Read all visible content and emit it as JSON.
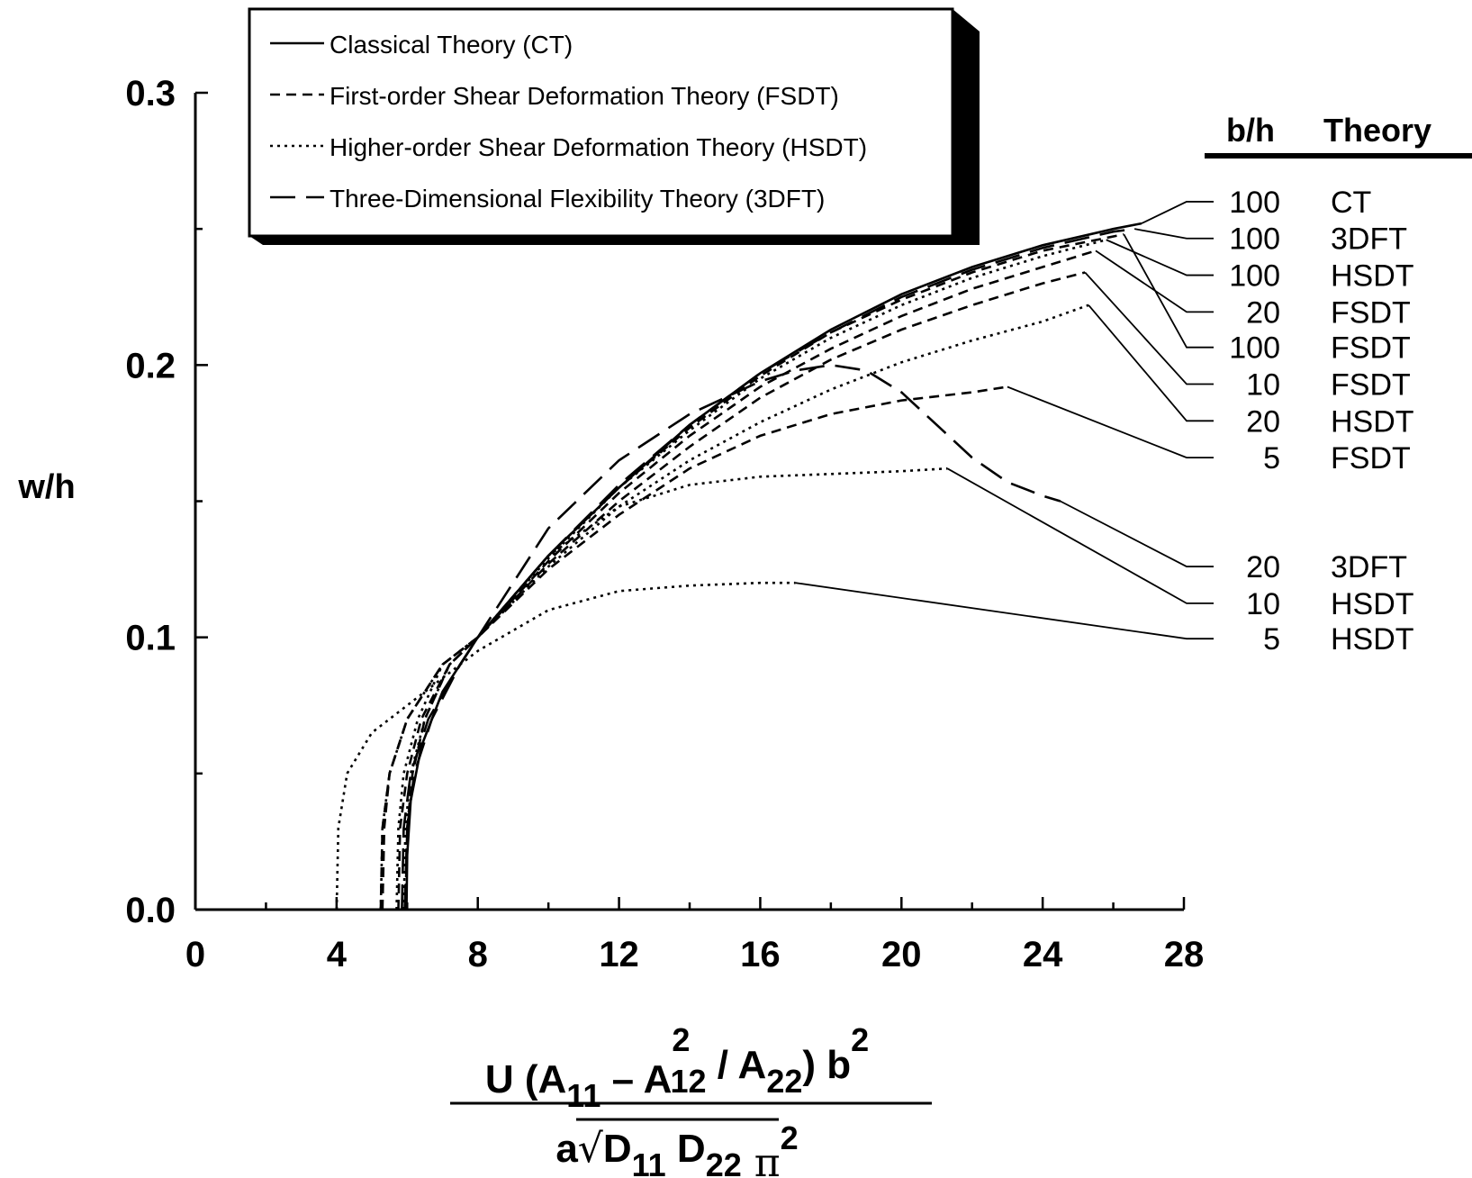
{
  "chart_data": {
    "type": "line",
    "xlabel": {
      "num_parts": [
        "U (A",
        "11",
        " – A",
        "2",
        "12",
        " / A",
        "22",
        ") b",
        "2"
      ],
      "den_parts": [
        "a",
        "D",
        "11",
        " D",
        "22",
        "π",
        "2"
      ]
    },
    "ylabel": "w/h",
    "xlim": [
      0,
      28
    ],
    "ylim": [
      0,
      0.3
    ],
    "x_ticks": [
      "0",
      "4",
      "8",
      "12",
      "16",
      "20",
      "24",
      "28"
    ],
    "y_ticks": [
      "0.0",
      "0.1",
      "0.2",
      "0.3"
    ],
    "legend": [
      {
        "label": "Classical Theory (CT)",
        "style": "solid"
      },
      {
        "label": "First-order Shear Deformation Theory (FSDT)",
        "style": "dashed"
      },
      {
        "label": "Higher-order Shear Deformation Theory (HSDT)",
        "style": "dotted"
      },
      {
        "label": "Three-Dimensional Flexibility Theory (3DFT)",
        "style": "longdash"
      }
    ],
    "legend_position": "top-left",
    "annotation_headers": {
      "bh": "b/h",
      "theory": "Theory"
    },
    "series": [
      {
        "bh": "100",
        "theory": "CT",
        "style": "solid",
        "x": [
          5.98,
          6.0,
          6.1,
          6.4,
          7.0,
          8.0,
          10.0,
          12.0,
          14.0,
          16.0,
          18.0,
          20.0,
          22.0,
          24.0,
          26.0,
          26.8
        ],
        "y": [
          0.0,
          0.02,
          0.04,
          0.06,
          0.08,
          0.1,
          0.13,
          0.155,
          0.178,
          0.197,
          0.213,
          0.226,
          0.236,
          0.244,
          0.25,
          0.252
        ],
        "label_end": [
          26.8,
          0.252
        ],
        "label_y": 0.26
      },
      {
        "bh": "100",
        "theory": "3DFT",
        "style": "longdash",
        "x": [
          5.93,
          6.0,
          6.2,
          6.7,
          7.5,
          8.0,
          10.0,
          12.0,
          14.0,
          16.0,
          18.0,
          20.0,
          22.0,
          24.0,
          26.0,
          26.6
        ],
        "y": [
          0.0,
          0.03,
          0.05,
          0.07,
          0.09,
          0.1,
          0.13,
          0.156,
          0.178,
          0.197,
          0.212,
          0.225,
          0.235,
          0.243,
          0.249,
          0.25
        ],
        "label_end": [
          26.6,
          0.25
        ],
        "label_y": 0.2465
      },
      {
        "bh": "100",
        "theory": "HSDT",
        "style": "dotted",
        "x": [
          5.9,
          5.95,
          6.1,
          6.5,
          7.2,
          8.0,
          10.0,
          12.0,
          14.0,
          16.0,
          18.0,
          20.0,
          22.0,
          24.0,
          25.8
        ],
        "y": [
          0.0,
          0.03,
          0.05,
          0.07,
          0.09,
          0.1,
          0.129,
          0.155,
          0.176,
          0.195,
          0.21,
          0.222,
          0.232,
          0.24,
          0.246
        ],
        "label_end": [
          25.8,
          0.246
        ],
        "label_y": 0.233
      },
      {
        "bh": "20",
        "theory": "FSDT",
        "style": "dashed",
        "x": [
          5.75,
          5.8,
          6.0,
          6.4,
          7.2,
          8.0,
          10.0,
          12.0,
          14.0,
          16.0,
          18.0,
          20.0,
          22.0,
          24.0,
          25.5
        ],
        "y": [
          0.0,
          0.03,
          0.05,
          0.07,
          0.09,
          0.1,
          0.128,
          0.153,
          0.174,
          0.192,
          0.206,
          0.218,
          0.228,
          0.236,
          0.242
        ],
        "label_end": [
          25.5,
          0.242
        ],
        "label_y": 0.2195
      },
      {
        "bh": "100",
        "theory": "FSDT",
        "style": "dashed",
        "x": [
          5.95,
          6.0,
          6.15,
          6.5,
          7.2,
          8.0,
          10.0,
          12.0,
          14.0,
          16.0,
          18.0,
          20.0,
          22.0,
          24.0,
          26.3
        ],
        "y": [
          0.0,
          0.03,
          0.05,
          0.07,
          0.09,
          0.1,
          0.13,
          0.155,
          0.177,
          0.196,
          0.212,
          0.224,
          0.234,
          0.242,
          0.248
        ],
        "label_end": [
          26.3,
          0.248
        ],
        "label_y": 0.2065
      },
      {
        "bh": "10",
        "theory": "FSDT",
        "style": "dashed",
        "x": [
          5.3,
          5.35,
          5.5,
          6.0,
          7.0,
          8.0,
          10.0,
          12.0,
          14.0,
          16.0,
          18.0,
          20.0,
          22.0,
          24.0,
          25.2
        ],
        "y": [
          0.0,
          0.03,
          0.05,
          0.07,
          0.09,
          0.1,
          0.127,
          0.15,
          0.17,
          0.188,
          0.202,
          0.213,
          0.222,
          0.23,
          0.234
        ],
        "label_end": [
          25.2,
          0.234
        ],
        "label_y": 0.193
      },
      {
        "bh": "20",
        "theory": "HSDT",
        "style": "dotted",
        "x": [
          5.7,
          5.75,
          5.9,
          6.3,
          7.0,
          8.0,
          10.0,
          12.0,
          14.0,
          16.0,
          18.0,
          20.0,
          22.0,
          24.0,
          25.3
        ],
        "y": [
          0.0,
          0.03,
          0.05,
          0.07,
          0.09,
          0.1,
          0.126,
          0.148,
          0.165,
          0.179,
          0.191,
          0.201,
          0.209,
          0.216,
          0.222
        ],
        "label_end": [
          25.3,
          0.222
        ],
        "label_y": 0.1795
      },
      {
        "bh": "5",
        "theory": "FSDT",
        "style": "dashed",
        "x": [
          5.25,
          5.3,
          5.5,
          6.0,
          7.0,
          8.0,
          10.0,
          12.0,
          14.0,
          16.0,
          18.0,
          20.0,
          22.0,
          23.0
        ],
        "y": [
          0.0,
          0.03,
          0.05,
          0.07,
          0.09,
          0.1,
          0.125,
          0.145,
          0.162,
          0.174,
          0.182,
          0.187,
          0.19,
          0.192
        ],
        "label_end": [
          23.0,
          0.192
        ],
        "label_y": 0.166
      },
      {
        "bh": "20",
        "theory": "3DFT",
        "style": "longdash",
        "x": [
          5.85,
          5.9,
          6.1,
          6.6,
          7.5,
          8.0,
          10.0,
          12.0,
          14.0,
          16.0,
          17.0,
          18.0,
          19.0,
          20.0,
          21.0,
          22.0,
          23.0,
          24.0,
          24.5
        ],
        "y": [
          0.0,
          0.03,
          0.05,
          0.07,
          0.09,
          0.1,
          0.14,
          0.165,
          0.182,
          0.194,
          0.198,
          0.2,
          0.198,
          0.19,
          0.178,
          0.166,
          0.157,
          0.152,
          0.15
        ],
        "label_end": [
          24.5,
          0.15
        ],
        "label_y": 0.126
      },
      {
        "bh": "10",
        "theory": "HSDT",
        "style": "dotted",
        "x": [
          5.25,
          5.3,
          5.5,
          6.0,
          7.0,
          8.0,
          10.0,
          12.0,
          14.0,
          16.0,
          18.0,
          20.0,
          21.3
        ],
        "y": [
          0.0,
          0.03,
          0.05,
          0.07,
          0.09,
          0.1,
          0.13,
          0.148,
          0.156,
          0.159,
          0.16,
          0.161,
          0.162
        ],
        "label_end": [
          21.3,
          0.162
        ],
        "label_y": 0.1125
      },
      {
        "bh": "5",
        "theory": "HSDT",
        "style": "dotted",
        "x": [
          4.0,
          4.05,
          4.3,
          5.0,
          6.5,
          8.0,
          10.0,
          12.0,
          14.0,
          16.0,
          17.0
        ],
        "y": [
          0.0,
          0.03,
          0.05,
          0.065,
          0.08,
          0.095,
          0.11,
          0.117,
          0.119,
          0.12,
          0.12
        ],
        "label_end": [
          17.0,
          0.12
        ],
        "label_y": 0.0995
      }
    ]
  }
}
